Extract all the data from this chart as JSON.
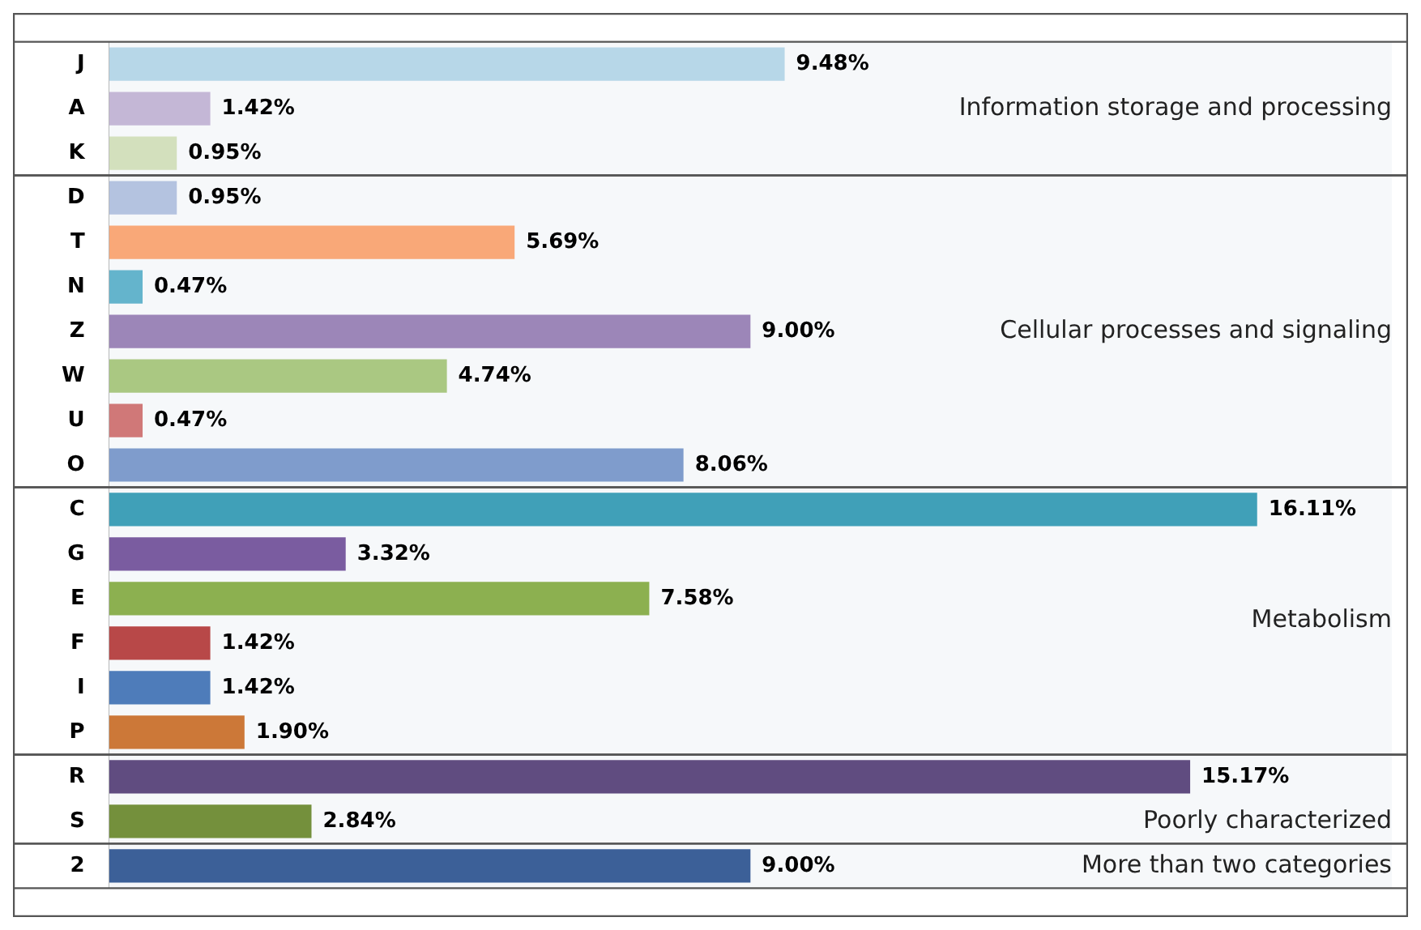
{
  "chart_data": {
    "type": "bar",
    "orientation": "horizontal",
    "categories": [
      "J",
      "A",
      "K",
      "D",
      "T",
      "N",
      "Z",
      "W",
      "U",
      "O",
      "C",
      "G",
      "E",
      "F",
      "I",
      "P",
      "R",
      "S",
      "2"
    ],
    "values": [
      9.48,
      1.42,
      0.95,
      0.95,
      5.69,
      0.47,
      9.0,
      4.74,
      0.47,
      8.06,
      16.11,
      3.32,
      7.58,
      1.42,
      1.42,
      1.9,
      15.17,
      2.84,
      9.0
    ],
    "value_labels": [
      "9.48%",
      "1.42%",
      "0.95%",
      "0.95%",
      "5.69%",
      "0.47%",
      "9.00%",
      "4.74%",
      "0.47%",
      "8.06%",
      "16.11%",
      "3.32%",
      "7.58%",
      "1.42%",
      "1.42%",
      "1.90%",
      "15.17%",
      "2.84%",
      "9.00%"
    ],
    "colors": [
      "#b7d7e8",
      "#c4b7d6",
      "#d3e0bd",
      "#b4c3e0",
      "#f9a878",
      "#64b4cc",
      "#9c86b8",
      "#aac882",
      "#d07878",
      "#7f9ccc",
      "#40a0b8",
      "#7a5ca0",
      "#8cb050",
      "#b84848",
      "#4e7cba",
      "#cc7838",
      "#604c80",
      "#74903c",
      "#3c6098"
    ],
    "bands": [
      {
        "axis": "y",
        "from": "J",
        "to": "K",
        "label": "Information storage and processing",
        "color": "#f6f8fa"
      },
      {
        "axis": "y",
        "from": "D",
        "to": "O",
        "label": "Cellular processes and signaling",
        "color": "#f6f8fa"
      },
      {
        "axis": "y",
        "from": "C",
        "to": "P",
        "label": "Metabolism",
        "color": "#f6f8fa"
      },
      {
        "axis": "y",
        "from": "R",
        "to": "S",
        "label": "Poorly characterized",
        "color": "#f6f8fa"
      },
      {
        "axis": "y",
        "from": "2",
        "to": "2",
        "label": "More than two categories",
        "color": "#f6f8fa"
      }
    ],
    "grid": false,
    "legend": false
  }
}
